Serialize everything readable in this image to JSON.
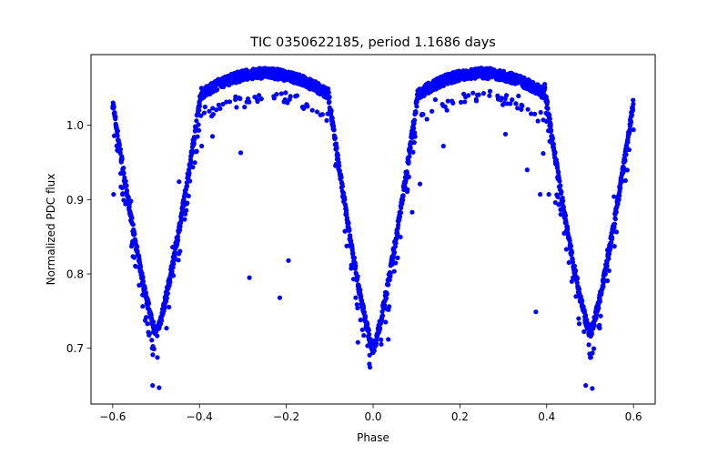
{
  "chart_data": {
    "type": "scatter",
    "title": "TIC 0350622185, period 1.1686 days",
    "xlabel": "Phase",
    "ylabel": "Normalized PDC flux",
    "xlim": [
      -0.65,
      0.65
    ],
    "ylim": [
      0.625,
      1.095
    ],
    "xticks": [
      -0.6,
      -0.4,
      -0.2,
      0.0,
      0.2,
      0.4,
      0.6
    ],
    "xtick_labels": [
      "−0.6",
      "−0.4",
      "−0.2",
      "0.0",
      "0.2",
      "0.4",
      "0.6"
    ],
    "yticks": [
      0.7,
      0.8,
      0.9,
      1.0
    ],
    "ytick_labels": [
      "0.7",
      "0.8",
      "0.9",
      "1.0"
    ],
    "grid": false,
    "marker_color": "#0000ff",
    "period_days": 1.1686,
    "light_curve": {
      "phase_range": [
        -0.6,
        0.6
      ],
      "baseline_flux": 1.05,
      "maximum_flux": 1.07,
      "eclipses": [
        {
          "center_phase": 0.0,
          "min_flux": 0.7
        },
        {
          "center_phase": -0.5,
          "min_flux": 0.72
        },
        {
          "center_phase": 0.5,
          "min_flux": 0.72
        }
      ]
    },
    "outliers": [
      {
        "x": -0.598,
        "y": 0.907
      },
      {
        "x": -0.577,
        "y": 0.908
      },
      {
        "x": -0.558,
        "y": 0.898
      },
      {
        "x": -0.543,
        "y": 0.83
      },
      {
        "x": -0.52,
        "y": 0.733
      },
      {
        "x": -0.51,
        "y": 0.711
      },
      {
        "x": -0.508,
        "y": 0.65
      },
      {
        "x": -0.493,
        "y": 0.647
      },
      {
        "x": -0.476,
        "y": 0.727
      },
      {
        "x": -0.462,
        "y": 0.836
      },
      {
        "x": -0.447,
        "y": 0.924
      },
      {
        "x": -0.42,
        "y": 0.958
      },
      {
        "x": -0.395,
        "y": 0.972
      },
      {
        "x": -0.37,
        "y": 0.985
      },
      {
        "x": -0.305,
        "y": 0.963
      },
      {
        "x": -0.285,
        "y": 0.795
      },
      {
        "x": -0.215,
        "y": 0.768
      },
      {
        "x": -0.195,
        "y": 0.818
      },
      {
        "x": -0.055,
        "y": 0.838
      },
      {
        "x": -0.035,
        "y": 0.708
      },
      {
        "x": 0.035,
        "y": 0.712
      },
      {
        "x": 0.09,
        "y": 0.883
      },
      {
        "x": 0.108,
        "y": 0.921
      },
      {
        "x": 0.162,
        "y": 0.972
      },
      {
        "x": 0.305,
        "y": 0.988
      },
      {
        "x": 0.355,
        "y": 0.94
      },
      {
        "x": 0.375,
        "y": 0.749
      },
      {
        "x": 0.385,
        "y": 0.907
      },
      {
        "x": 0.392,
        "y": 0.962
      },
      {
        "x": 0.405,
        "y": 0.907
      },
      {
        "x": 0.42,
        "y": 0.896
      },
      {
        "x": 0.455,
        "y": 0.828
      },
      {
        "x": 0.475,
        "y": 0.733
      },
      {
        "x": 0.49,
        "y": 0.65
      },
      {
        "x": 0.505,
        "y": 0.646
      },
      {
        "x": 0.522,
        "y": 0.727
      },
      {
        "x": 0.54,
        "y": 0.832
      },
      {
        "x": 0.555,
        "y": 0.904
      },
      {
        "x": 0.58,
        "y": 0.96
      },
      {
        "x": 0.59,
        "y": 0.967
      }
    ]
  }
}
